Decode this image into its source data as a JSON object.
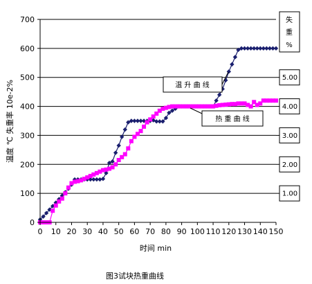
{
  "chart_data": {
    "type": "line",
    "caption": "图3试块热重曲线",
    "xlabel": "时间  min",
    "ylabel_left": "温度 ℃   失重率 10e-2%",
    "ylabel_right": [
      "失",
      "重",
      "%"
    ],
    "xlim": [
      0,
      150
    ],
    "ylim": [
      0,
      700
    ],
    "x_ticks": [
      "0",
      "10",
      "20",
      "30",
      "40",
      "50",
      "60",
      "70",
      "80",
      "90",
      "100",
      "110",
      "120",
      "130",
      "140",
      "150"
    ],
    "y_ticks": [
      "0",
      "100",
      "200",
      "300",
      "400",
      "500",
      "600",
      "700"
    ],
    "right_ticks": [
      "1.00",
      "2.00",
      "3.00",
      "4.00",
      "5.00"
    ],
    "grid": "horizontal",
    "annotations": [
      {
        "text": "温 升 曲 线",
        "series": "temperature"
      },
      {
        "text": "热 重 曲 线",
        "series": "weight_loss"
      }
    ],
    "series": [
      {
        "id": "temperature",
        "color": "#1a1f6e",
        "marker": "diamond",
        "x": [
          0,
          2,
          4,
          6,
          8,
          10,
          12,
          14,
          16,
          18,
          20,
          22,
          24,
          26,
          28,
          30,
          32,
          34,
          36,
          38,
          40,
          42,
          44,
          46,
          48,
          50,
          52,
          54,
          56,
          58,
          60,
          62,
          64,
          66,
          68,
          70,
          72,
          74,
          76,
          78,
          80,
          82,
          84,
          86,
          88,
          90,
          92,
          94,
          96,
          98,
          100,
          102,
          104,
          106,
          108,
          110,
          112,
          114,
          116,
          118,
          120,
          122,
          124,
          126,
          128,
          130,
          132,
          134,
          136,
          138,
          140,
          142,
          144,
          146,
          148,
          150
        ],
        "y": [
          10,
          20,
          32,
          44,
          56,
          68,
          80,
          92,
          104,
          116,
          130,
          148,
          148,
          148,
          148,
          148,
          148,
          148,
          148,
          148,
          150,
          170,
          205,
          210,
          240,
          265,
          295,
          320,
          345,
          350,
          350,
          350,
          350,
          350,
          350,
          350,
          352,
          348,
          348,
          348,
          360,
          378,
          385,
          392,
          400,
          400,
          400,
          400,
          400,
          400,
          400,
          400,
          400,
          400,
          400,
          400,
          420,
          440,
          460,
          490,
          520,
          545,
          570,
          595,
          600,
          600,
          600,
          600,
          600,
          600,
          600,
          600,
          600,
          600,
          600,
          600
        ]
      },
      {
        "id": "weight_loss",
        "color": "#ff00ff",
        "marker": "square",
        "x": [
          0,
          2,
          4,
          6,
          8,
          10,
          12,
          14,
          16,
          18,
          20,
          22,
          24,
          26,
          28,
          30,
          32,
          34,
          36,
          38,
          40,
          42,
          44,
          46,
          48,
          50,
          52,
          54,
          56,
          58,
          60,
          62,
          64,
          66,
          68,
          70,
          72,
          74,
          76,
          78,
          80,
          82,
          84,
          86,
          88,
          90,
          92,
          94,
          96,
          98,
          100,
          102,
          104,
          106,
          108,
          110,
          112,
          114,
          116,
          118,
          120,
          122,
          124,
          126,
          128,
          130,
          132,
          134,
          136,
          138,
          140,
          142,
          144,
          146,
          148,
          150
        ],
        "y": [
          0,
          0,
          0,
          0,
          40,
          58,
          72,
          82,
          100,
          120,
          135,
          140,
          142,
          145,
          150,
          155,
          160,
          165,
          170,
          175,
          180,
          182,
          185,
          190,
          200,
          215,
          225,
          235,
          255,
          280,
          295,
          305,
          315,
          330,
          345,
          355,
          365,
          375,
          385,
          392,
          395,
          398,
          400,
          400,
          400,
          400,
          400,
          400,
          400,
          400,
          400,
          400,
          400,
          400,
          400,
          400,
          402,
          404,
          405,
          406,
          407,
          408,
          408,
          410,
          410,
          410,
          405,
          400,
          415,
          405,
          410,
          420,
          420,
          420,
          420,
          420
        ]
      }
    ]
  }
}
